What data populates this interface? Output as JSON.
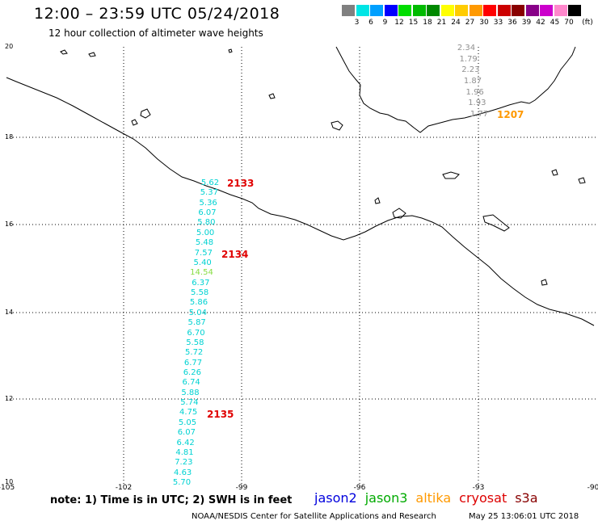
{
  "header": {
    "title": "12:00 – 23:59 UTC 05/24/2018",
    "subtitle": "12 hour collection of altimeter wave heights"
  },
  "colorbar": {
    "units": "(ft)",
    "colors": [
      "#808080",
      "#00e5e5",
      "#00a0ff",
      "#0000ff",
      "#00dd00",
      "#00bb00",
      "#008800",
      "#ffff00",
      "#ffcc00",
      "#ff9900",
      "#ff0000",
      "#cc0000",
      "#880000",
      "#880088",
      "#cc00cc",
      "#ff88cc",
      "#000000"
    ],
    "ticks": [
      "3",
      "6",
      "9",
      "12",
      "15",
      "18",
      "21",
      "24",
      "27",
      "30",
      "33",
      "36",
      "39",
      "42",
      "45",
      "70"
    ]
  },
  "axes": {
    "lat_labels": [
      "20",
      "18",
      "16",
      "14",
      "12",
      "10"
    ],
    "lon_labels": [
      "-105",
      "-102",
      "-99",
      "-96",
      "-93",
      "-90"
    ]
  },
  "tracks": [
    {
      "satellite": "jason3",
      "text_color": "#00d2d2",
      "values": [
        "5.62",
        "5.37",
        "5.36",
        "6.07",
        "5.80",
        "5.00",
        "5.48",
        "7.57",
        "5.40",
        "14.54",
        "6.37",
        "5.58",
        "5.86",
        "5.04",
        "5.87",
        "6.70",
        "5.58",
        "5.72",
        "6.77",
        "6.26",
        "6.74",
        "5.88",
        "5.74",
        "4.75",
        "5.05",
        "6.07",
        "6.42",
        "4.81",
        "7.23",
        "4.63",
        "5.70"
      ],
      "highlight": {
        "index": 9,
        "color": "#88dd44"
      },
      "time_labels": [
        {
          "text": "2133",
          "color": "#e00000"
        },
        {
          "text": "2134",
          "color": "#e00000"
        },
        {
          "text": "2135",
          "color": "#e00000"
        }
      ]
    },
    {
      "satellite": "altika",
      "text_color": "#909090",
      "values": [
        "2.34",
        "1.79",
        "2.23",
        "1.87",
        "1.96",
        "1.93",
        "1.77"
      ],
      "time_labels": [
        {
          "text": "1207",
          "color": "#ff9900"
        }
      ]
    }
  ],
  "footer": {
    "note": "note: 1) Time is in UTC; 2) SWH is in feet",
    "legend": [
      {
        "name": "jason2",
        "color": "#0000dd"
      },
      {
        "name": "jason3",
        "color": "#00aa00"
      },
      {
        "name": "altika",
        "color": "#ff9900"
      },
      {
        "name": "cryosat",
        "color": "#dd0000"
      },
      {
        "name": "s3a",
        "color": "#880000"
      }
    ],
    "credit": "NOAA/NESDIS Center for Satellite Applications and Research",
    "timestamp": "May 25 13:06:01 UTC 2018"
  }
}
